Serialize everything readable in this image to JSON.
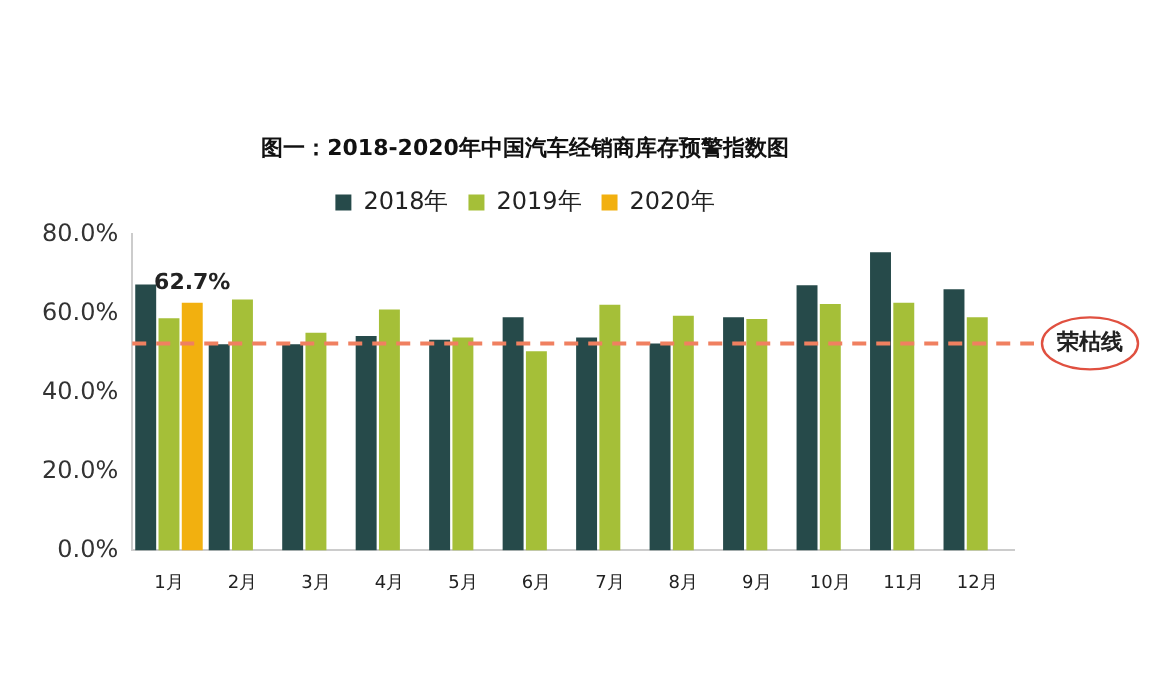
{
  "chart_data": {
    "type": "bar",
    "title": "图一：2018-2020年中国汽车经销商库存预警指数图",
    "categories": [
      "1月",
      "2月",
      "3月",
      "4月",
      "5月",
      "6月",
      "7月",
      "8月",
      "9月",
      "10月",
      "11月",
      "12月"
    ],
    "series": [
      {
        "name": "2018年",
        "color": "#264a4a",
        "values": [
          67.3,
          52.2,
          52.2,
          54.3,
          53.3,
          59.0,
          53.9,
          52.4,
          59.0,
          67.1,
          75.5,
          66.1
        ]
      },
      {
        "name": "2019年",
        "color": "#a5bf38",
        "values": [
          58.8,
          63.5,
          55.1,
          61.0,
          53.9,
          50.4,
          62.2,
          59.4,
          58.6,
          62.4,
          62.7,
          59.0
        ]
      },
      {
        "name": "2020年",
        "color": "#f2b00f",
        "values": [
          62.7,
          null,
          null,
          null,
          null,
          null,
          null,
          null,
          null,
          null,
          null,
          null
        ],
        "value_labels": [
          "62.7%",
          null,
          null,
          null,
          null,
          null,
          null,
          null,
          null,
          null,
          null,
          null
        ]
      }
    ],
    "ylim": [
      0,
      80
    ],
    "yticks": [
      {
        "value": 0,
        "label": "0.0%"
      },
      {
        "value": 20,
        "label": "20.0%"
      },
      {
        "value": 40,
        "label": "40.0%"
      },
      {
        "value": 60,
        "label": "60.0%"
      },
      {
        "value": 80,
        "label": "80.0%"
      }
    ],
    "ref_lines": [
      {
        "axis": "y",
        "value": 52.4,
        "label": "荣枯线",
        "color": "#f08060",
        "line_style": "dashed"
      }
    ],
    "grid": false,
    "legend": "top"
  }
}
